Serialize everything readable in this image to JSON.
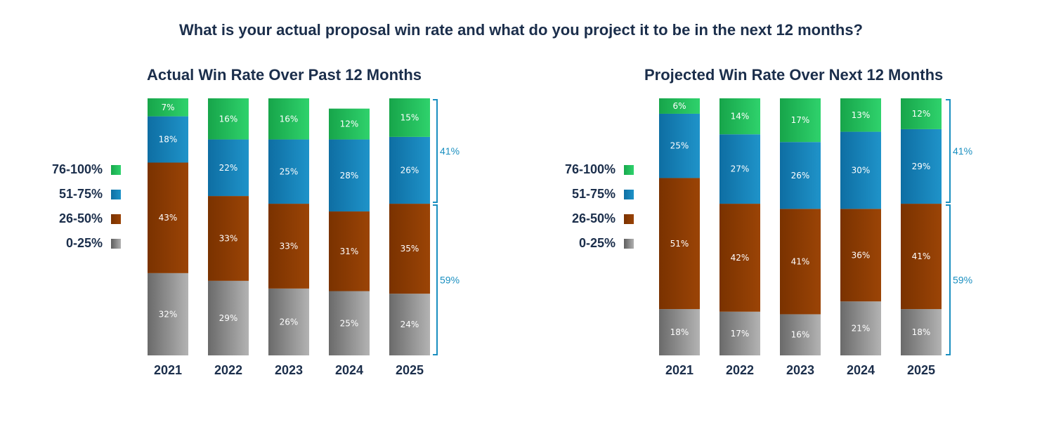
{
  "title": "What is your actual proposal win rate and what do you project it to be in the next 12 months?",
  "legend": {
    "items": [
      {
        "label": "76-100%",
        "color": "#1fbf5a"
      },
      {
        "label": "51-75%",
        "color": "#127fb3"
      },
      {
        "label": "26-50%",
        "color": "#8a3a00"
      },
      {
        "label": "0-25%",
        "color": "#8c8c8c"
      }
    ]
  },
  "chart_data": [
    {
      "type": "bar",
      "stacked": true,
      "title": "Actual Win Rate Over Past 12 Months",
      "categories": [
        "2021",
        "2022",
        "2023",
        "2024",
        "2025"
      ],
      "series": [
        {
          "name": "0-25%",
          "values": [
            32,
            29,
            26,
            25,
            24
          ],
          "labels": [
            "32%",
            "29%",
            "26%",
            "25%",
            "24%"
          ]
        },
        {
          "name": "26-50%",
          "values": [
            43,
            33,
            33,
            31,
            35
          ],
          "labels": [
            "43%",
            "33%",
            "33%",
            "31%",
            "35%"
          ]
        },
        {
          "name": "51-75%",
          "values": [
            18,
            22,
            25,
            28,
            26
          ],
          "labels": [
            "18%",
            "22%",
            "25%",
            "28%",
            "26%"
          ]
        },
        {
          "name": "76-100%",
          "values": [
            7,
            16,
            16,
            12,
            15
          ],
          "labels": [
            "7%",
            "16%",
            "16%",
            "12%",
            "15%"
          ]
        }
      ],
      "brackets": [
        {
          "label": "41%",
          "value": 41
        },
        {
          "label": "59%",
          "value": 59
        }
      ],
      "ylim": [
        0,
        100
      ]
    },
    {
      "type": "bar",
      "stacked": true,
      "title": "Projected Win Rate Over Next 12 Months",
      "categories": [
        "2021",
        "2022",
        "2023",
        "2024",
        "2025"
      ],
      "series": [
        {
          "name": "0-25%",
          "values": [
            18,
            17,
            16,
            21,
            18
          ],
          "labels": [
            "18%",
            "17%",
            "16%",
            "21%",
            "18%"
          ]
        },
        {
          "name": "26-50%",
          "values": [
            51,
            42,
            41,
            36,
            41
          ],
          "labels": [
            "51%",
            "42%",
            "41%",
            "36%",
            "41%"
          ]
        },
        {
          "name": "51-75%",
          "values": [
            25,
            27,
            26,
            30,
            29
          ],
          "labels": [
            "25%",
            "27%",
            "26%",
            "30%",
            "29%"
          ]
        },
        {
          "name": "76-100%",
          "values": [
            6,
            14,
            17,
            13,
            12
          ],
          "labels": [
            "6%",
            "14%",
            "17%",
            "13%",
            "12%"
          ]
        }
      ],
      "brackets": [
        {
          "label": "41%",
          "value": 41
        },
        {
          "label": "59%",
          "value": 59
        }
      ],
      "ylim": [
        0,
        100
      ]
    }
  ]
}
